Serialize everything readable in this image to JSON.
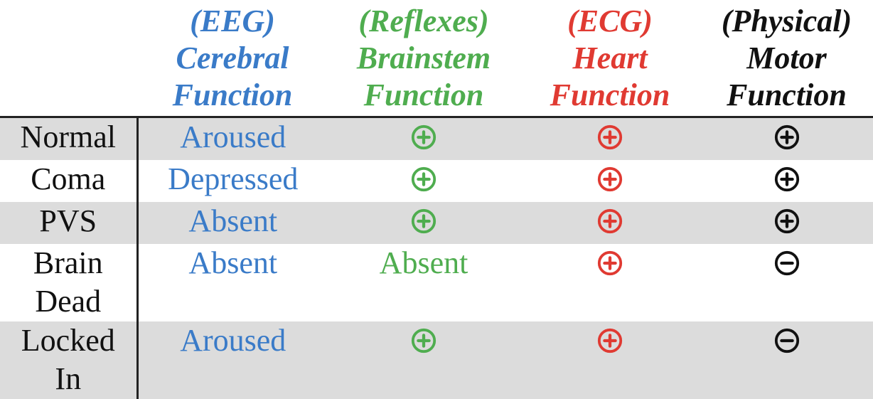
{
  "colors": {
    "cerebral": "#3a7bc8",
    "brainstem": "#4fad4f",
    "heart": "#e03a32",
    "motor": "#111111",
    "row_shade": "#dcdcdc"
  },
  "headers": [
    {
      "line1": "(EEG)",
      "line2": "Cerebral",
      "line3": "Function"
    },
    {
      "line1": "(Reflexes)",
      "line2": "Brainstem",
      "line3": "Function"
    },
    {
      "line1": "(ECG)",
      "line2": "Heart",
      "line3": "Function"
    },
    {
      "line1": "(Physical)",
      "line2": "Motor",
      "line3": "Function"
    }
  ],
  "rows": [
    {
      "label1": "Normal",
      "label2": "",
      "cerebral": "Aroused",
      "brainstem": "plus-circle-icon",
      "heart": "plus-circle-icon",
      "motor": "plus-circle-icon"
    },
    {
      "label1": "Coma",
      "label2": "",
      "cerebral": "Depressed",
      "brainstem": "plus-circle-icon",
      "heart": "plus-circle-icon",
      "motor": "plus-circle-icon"
    },
    {
      "label1": "PVS",
      "label2": "",
      "cerebral": "Absent",
      "brainstem": "plus-circle-icon",
      "heart": "plus-circle-icon",
      "motor": "plus-circle-icon"
    },
    {
      "label1": "Brain",
      "label2": "Dead",
      "cerebral": "Absent",
      "brainstem": "Absent",
      "heart": "plus-circle-icon",
      "motor": "minus-circle-icon"
    },
    {
      "label1": "Locked",
      "label2": "In",
      "cerebral": "Aroused",
      "brainstem": "plus-circle-icon",
      "heart": "plus-circle-icon",
      "motor": "minus-circle-icon"
    }
  ]
}
